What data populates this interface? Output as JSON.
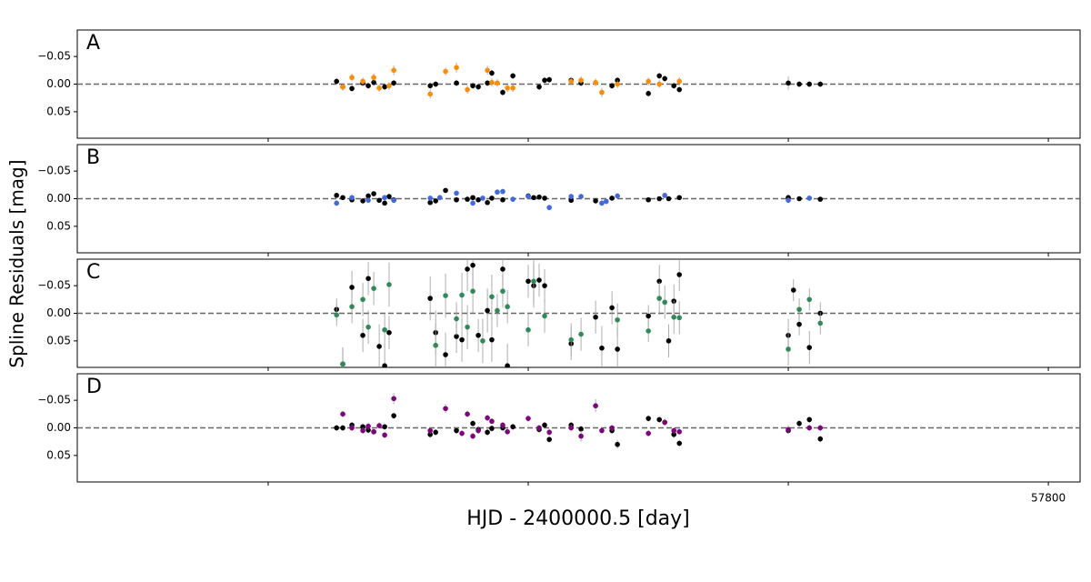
{
  "ylabel": "Spline Residuals [mag]",
  "xlabel": "HJD - 2400000.5 [day]",
  "chart_data": [
    {
      "type": "scatter",
      "label": "A",
      "label_color": "#ff8c00",
      "hline": 0,
      "xlim": [
        57426.6,
        57812.2
      ],
      "ylim": [
        -0.098,
        0.098
      ],
      "y_inverted": true,
      "yticks": [
        {
          "value": -0.05,
          "label": "−0.05"
        },
        {
          "value": 0,
          "label": "0.00"
        },
        {
          "value": 0.05,
          "label": "0.05"
        }
      ],
      "xticks": [
        {
          "value": 57500,
          "label": null
        },
        {
          "value": 57600,
          "label": null
        },
        {
          "value": 57700,
          "label": null
        },
        {
          "value": 57800,
          "label": null
        }
      ],
      "series": [
        {
          "color": "#000000",
          "x": [
            57526.3,
            57528.7,
            57532.2,
            57536.4,
            57538.5,
            57540.6,
            57544.8,
            57548.3,
            57562.3,
            57564.4,
            57572.4,
            57578.7,
            57580.8,
            57584.3,
            57586.0,
            57590.2,
            57594.1,
            57604.2,
            57606.3,
            57608.1,
            57616.5,
            57620.3,
            57632.2,
            57634.3,
            57646.2,
            57650.4,
            57652.5,
            57656.0,
            57658.1,
            57700.0,
            57704.2,
            57708.1,
            57712.3
          ],
          "values": [
            -0.005,
            0.005,
            0.008,
            -0.002,
            0.003,
            -0.003,
            0.005,
            -0.002,
            0.003,
            0,
            -0.002,
            0.003,
            0.005,
            -0.002,
            -0.02,
            0.015,
            -0.015,
            0.005,
            -0.007,
            -0.008,
            -0.007,
            -0.002,
            0.003,
            -0.007,
            0.017,
            -0.015,
            -0.01,
            0.003,
            0.01,
            -0.002,
            0,
            0,
            0
          ],
          "errors": [
            0.006,
            0.006,
            0.006,
            0.006,
            0.006,
            0.006,
            0.006,
            0.006,
            0.006,
            0.006,
            0.006,
            0.006,
            0.006,
            0.006,
            0.006,
            0.006,
            0.006,
            0.006,
            0.006,
            0.006,
            0.006,
            0.006,
            0.006,
            0.006,
            0.006,
            0.006,
            0.006,
            0.006,
            0.006,
            0.012,
            0.006,
            0.006,
            0.006
          ]
        },
        {
          "color": "#ff8c00",
          "x": [
            57528.7,
            57532.2,
            57536.4,
            57540.6,
            57542.7,
            57546.5,
            57548.3,
            57562.3,
            57568.2,
            57572.4,
            57576.6,
            57584.3,
            57586.0,
            57588.1,
            57592.0,
            57594.1,
            57616.5,
            57620.3,
            57625.9,
            57628.3,
            57634.3,
            57646.2,
            57650.4,
            57658.1
          ],
          "values": [
            0.005,
            -0.012,
            -0.005,
            -0.012,
            0.007,
            0.003,
            -0.025,
            0.018,
            -0.023,
            -0.03,
            0.01,
            -0.025,
            -0.003,
            -0.002,
            0.007,
            0.007,
            -0.005,
            -0.007,
            -0.003,
            0.015,
            0,
            -0.005,
            0,
            -0.005
          ],
          "errors": [
            0.007,
            0.007,
            0.007,
            0.007,
            0.007,
            0.007,
            0.009,
            0.008,
            0.007,
            0.009,
            0.007,
            0.008,
            0.007,
            0.007,
            0.007,
            0.007,
            0.007,
            0.007,
            0.007,
            0.008,
            0.007,
            0.007,
            0.007,
            0.007
          ]
        }
      ]
    },
    {
      "type": "scatter",
      "label": "B",
      "label_color": "#4169e1",
      "hline": 0,
      "xlim": [
        57426.6,
        57812.2
      ],
      "ylim": [
        -0.098,
        0.098
      ],
      "y_inverted": true,
      "yticks": [
        {
          "value": -0.05,
          "label": "−0.05"
        },
        {
          "value": 0,
          "label": "0.00"
        },
        {
          "value": 0.05,
          "label": "0.05"
        }
      ],
      "xticks": [
        {
          "value": 57500,
          "label": null
        },
        {
          "value": 57600,
          "label": null
        },
        {
          "value": 57700,
          "label": null
        },
        {
          "value": 57800,
          "label": null
        }
      ],
      "series": [
        {
          "color": "#000000",
          "x": [
            57526.3,
            57528.7,
            57532.2,
            57536.4,
            57538.5,
            57540.6,
            57542.7,
            57544.8,
            57546.5,
            57548.3,
            57562.3,
            57564.4,
            57568.2,
            57572.4,
            57576.6,
            57578.7,
            57580.8,
            57584.3,
            57586.0,
            57590.2,
            57600.0,
            57602.1,
            57604.2,
            57606.3,
            57616.5,
            57625.9,
            57632.2,
            57646.2,
            57650.4,
            57654.0,
            57658.1,
            57700.0,
            57704.2,
            57712.3
          ],
          "values": [
            -0.006,
            -0.002,
            0.002,
            0.004,
            -0.005,
            -0.009,
            0.003,
            0.008,
            -0.004,
            0.002,
            0.007,
            0.004,
            -0.015,
            0.002,
            0.001,
            -0.002,
            0.002,
            0.007,
            -0.001,
            0.002,
            -0.005,
            -0.002,
            -0.003,
            -0.001,
            0.003,
            0.004,
            -0.001,
            0.002,
            0,
            0,
            -0.002,
            -0.002,
            0,
            0.001
          ],
          "errors": [
            0.004,
            0.004,
            0.004,
            0.004,
            0.004,
            0.004,
            0.004,
            0.004,
            0.004,
            0.004,
            0.004,
            0.004,
            0.004,
            0.004,
            0.004,
            0.004,
            0.004,
            0.004,
            0.004,
            0.004,
            0.004,
            0.004,
            0.004,
            0.004,
            0.004,
            0.004,
            0.004,
            0.004,
            0.004,
            0.004,
            0.004,
            0.006,
            0.004,
            0.004
          ]
        },
        {
          "color": "#4169e1",
          "x": [
            57526.3,
            57532.2,
            57538.5,
            57544.8,
            57548.3,
            57562.3,
            57566.0,
            57572.4,
            57578.7,
            57582.5,
            57588.1,
            57590.2,
            57594.1,
            57600.0,
            57608.1,
            57616.5,
            57620.3,
            57628.3,
            57630.0,
            57634.3,
            57652.5,
            57700.0,
            57708.1
          ],
          "values": [
            0.008,
            -0.002,
            0.003,
            -0.002,
            0.003,
            -0.001,
            -0.002,
            -0.01,
            0.008,
            -0.001,
            -0.012,
            -0.013,
            0.001,
            -0.004,
            0.016,
            -0.004,
            -0.004,
            0.008,
            0.005,
            -0.005,
            -0.006,
            0.003,
            -0.001
          ],
          "errors": [
            0.005,
            0.005,
            0.005,
            0.005,
            0.005,
            0.005,
            0.005,
            0.005,
            0.005,
            0.005,
            0.005,
            0.005,
            0.005,
            0.005,
            0.005,
            0.005,
            0.005,
            0.005,
            0.005,
            0.005,
            0.005,
            0.005,
            0.005
          ]
        }
      ]
    },
    {
      "type": "scatter",
      "label": "C",
      "label_color": "#2e8b57",
      "hline": 0,
      "xlim": [
        57426.6,
        57812.2
      ],
      "ylim": [
        -0.098,
        0.098
      ],
      "y_inverted": true,
      "yticks": [
        {
          "value": -0.05,
          "label": "−0.05"
        },
        {
          "value": 0,
          "label": "0.00"
        },
        {
          "value": 0.05,
          "label": "0.05"
        }
      ],
      "xticks": [
        {
          "value": 57500,
          "label": null
        },
        {
          "value": 57600,
          "label": null
        },
        {
          "value": 57700,
          "label": null
        },
        {
          "value": 57800,
          "label": null
        }
      ],
      "series": [
        {
          "color": "#000000",
          "x": [
            57526.3,
            57528.7,
            57532.2,
            57536.4,
            57538.5,
            57542.7,
            57544.8,
            57546.5,
            57562.3,
            57564.4,
            57568.2,
            57572.4,
            57574.5,
            57576.6,
            57578.7,
            57580.8,
            57584.3,
            57586.0,
            57590.2,
            57592.0,
            57600.0,
            57602.1,
            57604.2,
            57606.3,
            57616.5,
            57625.9,
            57628.3,
            57632.2,
            57634.3,
            57646.2,
            57650.4,
            57654.0,
            57656.0,
            57658.1,
            57700.0,
            57702.0,
            57704.2,
            57708.1,
            57712.3
          ],
          "values": [
            -0.007,
            0.092,
            -0.047,
            0.04,
            -0.063,
            0.06,
            0.095,
            0.035,
            -0.027,
            0.035,
            0.075,
            0.042,
            0.048,
            -0.08,
            -0.087,
            0.04,
            -0.005,
            0.048,
            -0.08,
            0.095,
            -0.058,
            -0.05,
            -0.06,
            -0.05,
            0.055,
            0.007,
            0.063,
            -0.01,
            0.065,
            0.005,
            -0.058,
            0.05,
            -0.022,
            -0.07,
            0.04,
            -0.042,
            0.02,
            0.062,
            0
          ],
          "errors": [
            0.02,
            0.03,
            0.03,
            0.03,
            0.03,
            0.04,
            0.04,
            0.03,
            0.04,
            0.04,
            0.04,
            0.03,
            0.04,
            0.04,
            0.04,
            0.03,
            0.04,
            0.04,
            0.04,
            0.04,
            0.03,
            0.04,
            0.03,
            0.03,
            0.03,
            0.03,
            0.04,
            0.03,
            0.04,
            0.02,
            0.03,
            0.03,
            0.03,
            0.03,
            0.03,
            0.02,
            0.02,
            0.03,
            0.02
          ]
        },
        {
          "color": "#2e8b57",
          "x": [
            57526.3,
            57528.7,
            57532.2,
            57536.4,
            57538.5,
            57540.6,
            57544.8,
            57546.5,
            57564.4,
            57568.2,
            57572.4,
            57574.5,
            57576.6,
            57578.7,
            57582.5,
            57586.0,
            57588.1,
            57590.2,
            57592.0,
            57600.0,
            57602.1,
            57606.3,
            57616.5,
            57620.3,
            57634.3,
            57646.2,
            57650.4,
            57652.5,
            57656.0,
            57658.1,
            57700.0,
            57704.2,
            57708.1,
            57712.3
          ],
          "values": [
            0.003,
            0.092,
            -0.012,
            -0.025,
            0.025,
            -0.045,
            0.03,
            -0.052,
            0.058,
            -0.032,
            0.01,
            -0.033,
            0.025,
            -0.04,
            0.05,
            -0.03,
            -0.005,
            -0.04,
            -0.012,
            0.03,
            -0.058,
            0.005,
            0.048,
            0.038,
            0.012,
            0.032,
            -0.027,
            -0.02,
            0.007,
            0.008,
            0.065,
            -0.007,
            -0.025,
            0.018
          ],
          "errors": [
            0.02,
            0.03,
            0.03,
            0.03,
            0.03,
            0.03,
            0.03,
            0.04,
            0.04,
            0.04,
            0.03,
            0.04,
            0.04,
            0.04,
            0.04,
            0.04,
            0.03,
            0.03,
            0.03,
            0.03,
            0.04,
            0.03,
            0.03,
            0.03,
            0.03,
            0.02,
            0.03,
            0.03,
            0.03,
            0.03,
            0.03,
            0.02,
            0.02,
            0.02
          ]
        }
      ]
    },
    {
      "type": "scatter",
      "label": "D",
      "label_color": "#800080",
      "hline": 0,
      "xlim": [
        57426.6,
        57812.2
      ],
      "ylim": [
        -0.098,
        0.098
      ],
      "y_inverted": true,
      "yticks": [
        {
          "value": -0.05,
          "label": "−0.05"
        },
        {
          "value": 0,
          "label": "0.00"
        },
        {
          "value": 0.05,
          "label": "0.05"
        }
      ],
      "xticks": [
        {
          "value": 57500,
          "label": null
        },
        {
          "value": 57600,
          "label": null
        },
        {
          "value": 57700,
          "label": null
        },
        57800
      ],
      "series": [
        {
          "color": "#000000",
          "x": [
            57526.3,
            57528.7,
            57532.2,
            57536.4,
            57538.5,
            57540.6,
            57544.8,
            57548.3,
            57562.3,
            57564.4,
            57572.4,
            57578.7,
            57580.8,
            57584.3,
            57586.0,
            57590.2,
            57594.1,
            57604.2,
            57606.3,
            57608.1,
            57616.5,
            57620.3,
            57632.2,
            57634.3,
            57646.2,
            57650.4,
            57652.5,
            57656.0,
            57658.1,
            57700.0,
            57704.2,
            57708.1,
            57712.3
          ],
          "values": [
            0,
            0,
            -0.005,
            -0.002,
            0.004,
            0.007,
            -0.002,
            -0.022,
            0.012,
            0.008,
            0.005,
            -0.008,
            0.003,
            0.008,
            0.001,
            0,
            -0.002,
            0.003,
            -0.005,
            0.021,
            -0.005,
            0.002,
            0.005,
            0.03,
            -0.017,
            -0.015,
            -0.01,
            0.012,
            0.028,
            0.005,
            -0.008,
            -0.015,
            0.02
          ],
          "errors": [
            0.006,
            0.006,
            0.006,
            0.006,
            0.006,
            0.006,
            0.006,
            0.006,
            0.006,
            0.006,
            0.006,
            0.006,
            0.006,
            0.006,
            0.006,
            0.006,
            0.006,
            0.006,
            0.006,
            0.006,
            0.006,
            0.006,
            0.006,
            0.008,
            0.006,
            0.006,
            0.006,
            0.006,
            0.006,
            0.006,
            0.006,
            0.006,
            0.006
          ]
        },
        {
          "color": "#800080",
          "x": [
            57528.7,
            57532.2,
            57536.4,
            57538.5,
            57540.6,
            57542.7,
            57544.8,
            57548.3,
            57562.3,
            57568.2,
            57574.5,
            57576.6,
            57578.7,
            57580.8,
            57584.3,
            57586.0,
            57590.2,
            57592.0,
            57600.0,
            57604.2,
            57608.1,
            57616.5,
            57620.3,
            57625.9,
            57628.3,
            57632.2,
            57646.2,
            57652.5,
            57656.0,
            57658.1,
            57700.0,
            57708.1,
            57712.3
          ],
          "values": [
            -0.025,
            0,
            0.005,
            -0.003,
            0.007,
            -0.004,
            0.013,
            -0.053,
            0.005,
            -0.035,
            0.01,
            -0.025,
            0.015,
            0.005,
            -0.018,
            -0.012,
            -0.005,
            0.007,
            -0.017,
            0,
            0.008,
            0,
            0.015,
            -0.04,
            0.005,
            0,
            0.01,
            -0.01,
            0.005,
            0.007,
            0.003,
            0,
            0
          ],
          "errors": [
            0.006,
            0.006,
            0.006,
            0.006,
            0.006,
            0.006,
            0.006,
            0.01,
            0.006,
            0.008,
            0.006,
            0.006,
            0.006,
            0.006,
            0.006,
            0.006,
            0.006,
            0.006,
            0.006,
            0.006,
            0.006,
            0.006,
            0.01,
            0.012,
            0.006,
            0.006,
            0.006,
            0.006,
            0.006,
            0.006,
            0.008,
            0.006,
            0.006
          ]
        }
      ]
    }
  ]
}
